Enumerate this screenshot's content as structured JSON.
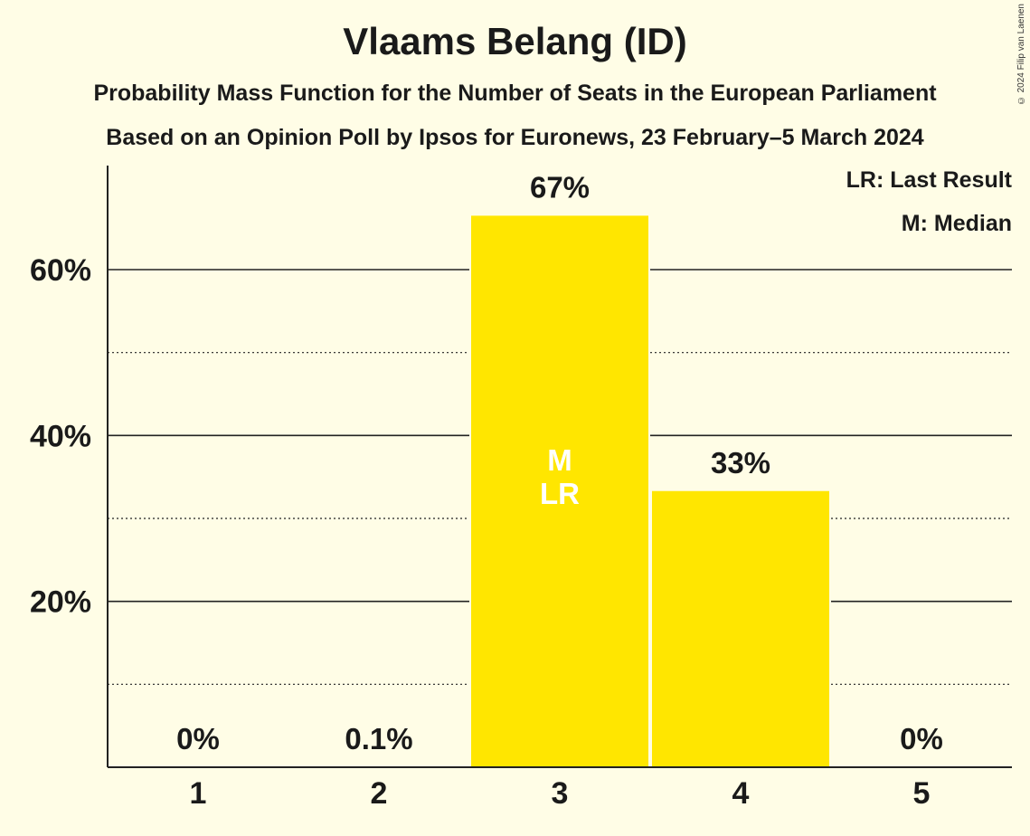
{
  "title": "Vlaams Belang (ID)",
  "subtitle1": "Probability Mass Function for the Number of Seats in the European Parliament",
  "subtitle2": "Based on an Opinion Poll by Ipsos for Euronews, 23 February–5 March 2024",
  "copyright": "© 2024 Filip van Laenen",
  "legend": {
    "last_result": "LR: Last Result",
    "median": "M: Median"
  },
  "colors": {
    "bar": "#FFE600",
    "background": "#FFFDE6",
    "text": "#1a1a1a"
  },
  "chart_data": {
    "type": "bar",
    "categories": [
      "1",
      "2",
      "3",
      "4",
      "5"
    ],
    "values": [
      0,
      0.1,
      66.5,
      33.3,
      0
    ],
    "data_labels": [
      "0%",
      "0.1%",
      "67%",
      "33%",
      "0%"
    ],
    "bar_markers": {
      "3": [
        "M",
        "LR"
      ]
    },
    "ylim": [
      0,
      72
    ],
    "yticks_major": [
      20,
      40,
      60
    ],
    "ytick_labels": [
      "20%",
      "40%",
      "60%"
    ],
    "yticks_minor": [
      10,
      30,
      50
    ],
    "xlabel": "",
    "ylabel": "",
    "grid": true,
    "legend_position": "top-right"
  }
}
